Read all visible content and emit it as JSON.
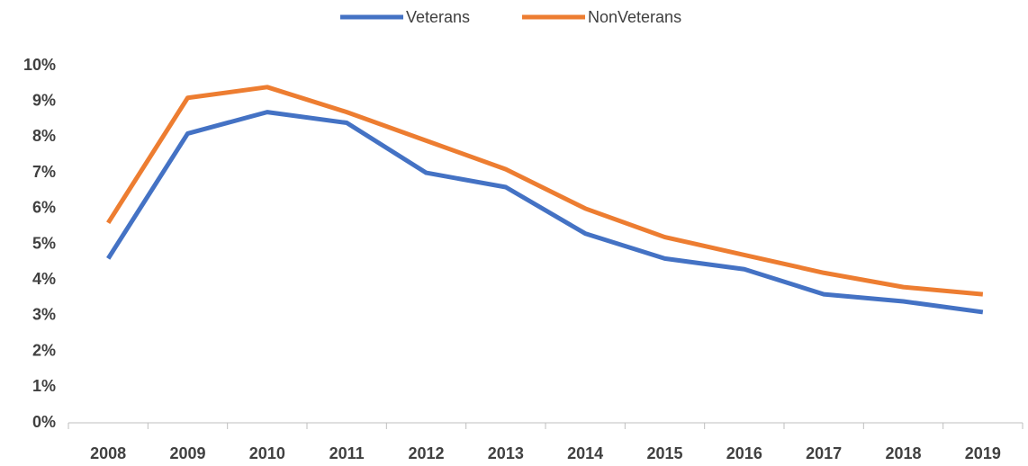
{
  "chart_data": {
    "type": "line",
    "categories": [
      "2008",
      "2009",
      "2010",
      "2011",
      "2012",
      "2013",
      "2014",
      "2015",
      "2016",
      "2017",
      "2018",
      "2019"
    ],
    "series": [
      {
        "name": "Veterans",
        "color": "#4472c4",
        "values": [
          4.6,
          8.1,
          8.7,
          8.4,
          7.0,
          6.6,
          5.3,
          4.6,
          4.3,
          3.6,
          3.4,
          3.1
        ]
      },
      {
        "name": "NonVeterans",
        "color": "#ed7d31",
        "values": [
          5.6,
          9.1,
          9.4,
          8.7,
          7.9,
          7.1,
          6.0,
          5.2,
          4.7,
          4.2,
          3.8,
          3.6
        ]
      }
    ],
    "ylim": [
      0,
      10
    ],
    "yticks": [
      {
        "value": 0,
        "label": "0%"
      },
      {
        "value": 1,
        "label": "1%"
      },
      {
        "value": 2,
        "label": "2%"
      },
      {
        "value": 3,
        "label": "3%"
      },
      {
        "value": 4,
        "label": "4%"
      },
      {
        "value": 5,
        "label": "5%"
      },
      {
        "value": 6,
        "label": "6%"
      },
      {
        "value": 7,
        "label": "7%"
      },
      {
        "value": 8,
        "label": "8%"
      },
      {
        "value": 9,
        "label": "9%"
      },
      {
        "value": 10,
        "label": "10%"
      }
    ],
    "legend": "top",
    "grid": false
  }
}
